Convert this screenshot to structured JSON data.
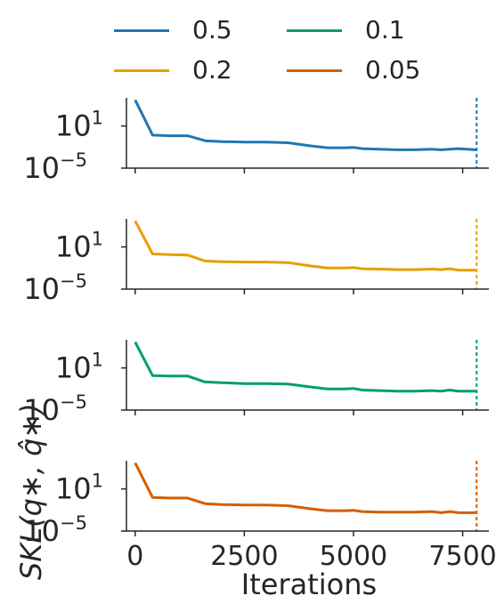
{
  "chart_data": {
    "type": "line",
    "layout": "4 stacked subplots sharing x axis",
    "xlabel": "Iterations",
    "ylabel": "SKL(q∗, q̂∗)",
    "xticks": [
      0,
      2500,
      5000,
      7500
    ],
    "xlim": [
      -200,
      8100
    ],
    "yscale": "log",
    "ylim": [
      1e-05,
      100000.0
    ],
    "yticks": [
      {
        "value": 1e-05,
        "base": "10",
        "exp": "−5"
      },
      {
        "value": 10,
        "base": "10",
        "exp": "1"
      }
    ],
    "legend": {
      "position": "top",
      "ncol": 2
    },
    "x": [
      0,
      400,
      800,
      1200,
      1600,
      2000,
      2500,
      3000,
      3500,
      4000,
      4400,
      4800,
      5000,
      5200,
      5600,
      6000,
      6400,
      6800,
      7000,
      7200,
      7400,
      7800
    ],
    "series": [
      {
        "name": "0.5",
        "color": "#1f77b4",
        "stop": 7820,
        "values": [
          50000,
          0.5,
          0.4,
          0.4,
          0.08,
          0.06,
          0.05,
          0.05,
          0.04,
          0.015,
          0.008,
          0.008,
          0.009,
          0.006,
          0.005,
          0.004,
          0.004,
          0.005,
          0.004,
          0.005,
          0.006,
          0.004
        ]
      },
      {
        "name": "0.2",
        "color": "#e69f00",
        "stop": 7820,
        "values": [
          50000,
          1.0,
          0.8,
          0.7,
          0.1,
          0.08,
          0.07,
          0.07,
          0.06,
          0.02,
          0.01,
          0.01,
          0.012,
          0.008,
          0.007,
          0.006,
          0.006,
          0.007,
          0.006,
          0.008,
          0.005,
          0.005
        ]
      },
      {
        "name": "0.1",
        "color": "#009e73",
        "stop": 7820,
        "values": [
          50000,
          0.8,
          0.7,
          0.7,
          0.1,
          0.08,
          0.06,
          0.06,
          0.05,
          0.02,
          0.01,
          0.01,
          0.012,
          0.007,
          0.006,
          0.005,
          0.005,
          0.006,
          0.005,
          0.007,
          0.005,
          0.005
        ]
      },
      {
        "name": "0.05",
        "color": "#d55e00",
        "stop": 7820,
        "values": [
          50000,
          0.6,
          0.5,
          0.5,
          0.08,
          0.06,
          0.05,
          0.05,
          0.04,
          0.015,
          0.008,
          0.008,
          0.009,
          0.006,
          0.005,
          0.005,
          0.005,
          0.006,
          0.004,
          0.006,
          0.004,
          0.004
        ]
      }
    ]
  }
}
